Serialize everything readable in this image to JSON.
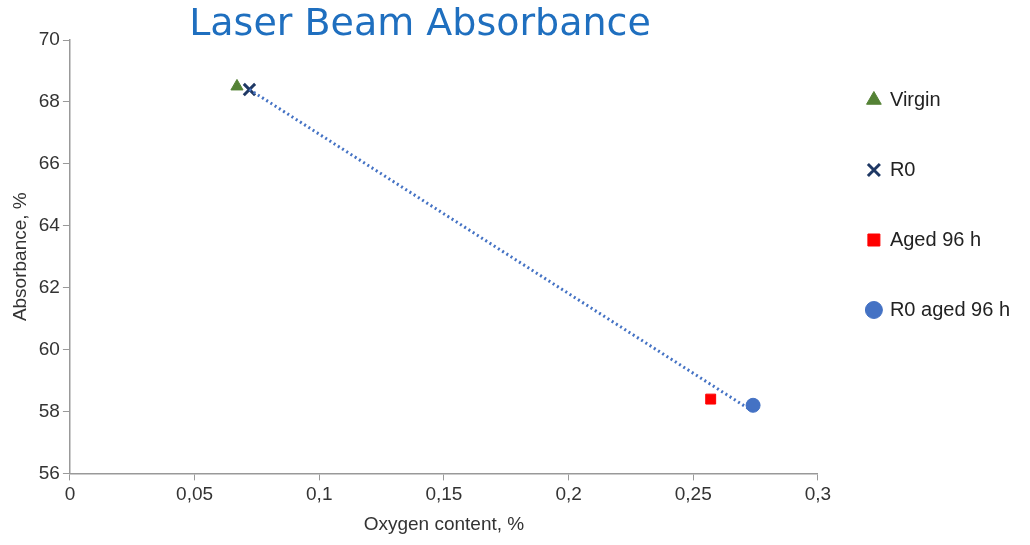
{
  "chart_data": {
    "type": "scatter",
    "title": "Laser Beam Absorbance",
    "xlabel": "Oxygen content, %",
    "ylabel": "Absorbance, %",
    "xlim": [
      0,
      0.3
    ],
    "xticks": [
      0,
      {
        "value": 0.05,
        "label": "0,05"
      },
      {
        "value": 0.1,
        "label": "0,1"
      },
      {
        "value": 0.15,
        "label": "0,15"
      },
      {
        "value": 0.2,
        "label": "0,2"
      },
      {
        "value": 0.25,
        "label": "0,25"
      },
      {
        "value": 0.3,
        "label": "0,3"
      }
    ],
    "ylim": [
      56,
      70
    ],
    "yticks": [
      56,
      58,
      60,
      62,
      64,
      66,
      68,
      70
    ],
    "grid": false,
    "legend": "right",
    "series": [
      {
        "name": "Virgin",
        "color": "#548235",
        "marker": "triangle",
        "x": [
          0.067
        ],
        "values": [
          68.5
        ]
      },
      {
        "name": "R0",
        "color": "#1f3864",
        "marker": "cross",
        "x": [
          0.072
        ],
        "values": [
          68.4
        ]
      },
      {
        "name": "Aged 96 h",
        "color": "#ff0000",
        "marker": "square",
        "x": [
          0.257
        ],
        "values": [
          58.4
        ]
      },
      {
        "name": "R0 aged 96 h",
        "color": "#4472c4",
        "marker": "circle",
        "x": [
          0.274
        ],
        "values": [
          58.2
        ]
      },
      {
        "type": "line",
        "color": "#4472c4",
        "marker": "none",
        "line_style": "dotted",
        "x": [
          0.072,
          0.274
        ],
        "values": [
          68.4,
          58.0
        ]
      }
    ]
  }
}
